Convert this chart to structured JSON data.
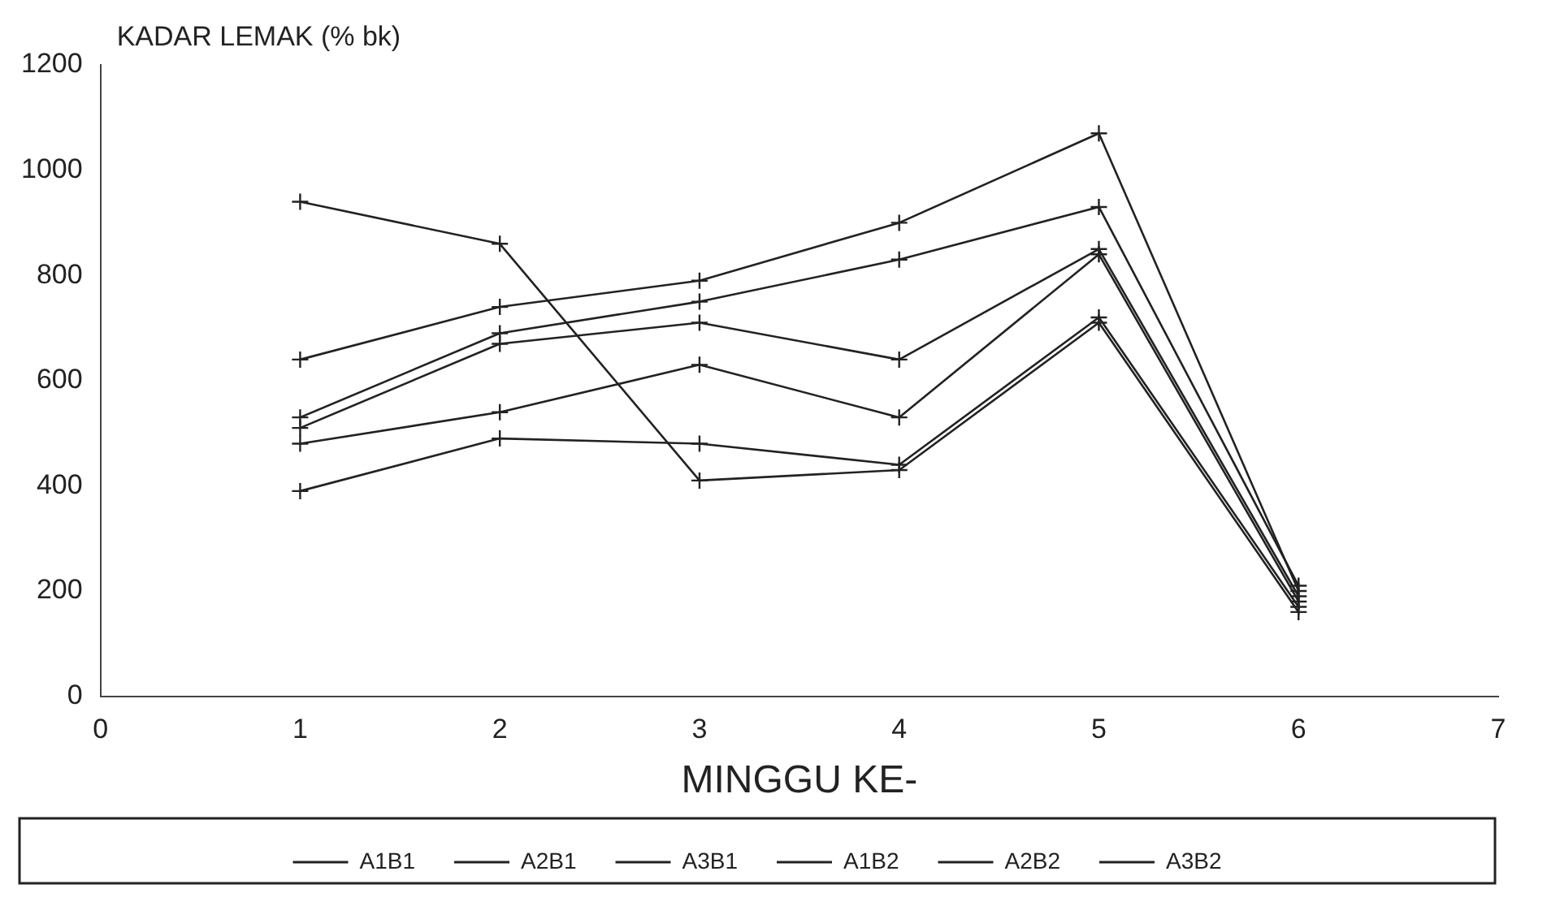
{
  "chart_data": {
    "type": "line",
    "xlabel": "MINGGU KE-",
    "ylabel": "KADAR LEMAK (% bk)",
    "x": [
      1,
      2,
      3,
      4,
      5,
      6
    ],
    "series": [
      {
        "name": "A1B1",
        "color": "#222222",
        "values": [
          640,
          740,
          790,
          900,
          1070,
          200
        ]
      },
      {
        "name": "A2B1",
        "color": "#222222",
        "values": [
          530,
          690,
          750,
          830,
          930,
          210
        ]
      },
      {
        "name": "A3B1",
        "color": "#222222",
        "values": [
          510,
          670,
          710,
          640,
          850,
          190
        ]
      },
      {
        "name": "A1B2",
        "color": "#222222",
        "values": [
          480,
          540,
          630,
          530,
          840,
          180
        ]
      },
      {
        "name": "A2B2",
        "color": "#222222",
        "values": [
          390,
          490,
          480,
          440,
          720,
          170
        ]
      },
      {
        "name": "A3B2",
        "color": "#222222",
        "values": [
          940,
          860,
          410,
          430,
          710,
          160
        ]
      }
    ],
    "xlim": [
      0,
      7
    ],
    "xticks": [
      0,
      1,
      2,
      3,
      4,
      5,
      6,
      7
    ],
    "ylim": [
      0,
      1200
    ],
    "yticks": [
      0,
      200,
      400,
      600,
      800,
      1000,
      1200
    ],
    "grid": false,
    "legend": "bottom",
    "marker": "cross",
    "line_style": "solid"
  }
}
